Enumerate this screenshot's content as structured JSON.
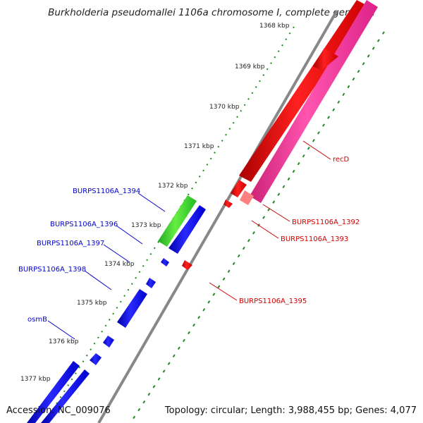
{
  "title": "Burkholderia pseudomallei 1106a chromosome I, complete genom...",
  "footer": {
    "accession": "Accession: NC_009076",
    "summary": "Topology: circular; Length: 3,988,455 bp; Genes: 4,077"
  },
  "scale_ticks": [
    "1368 kbp",
    "1369 kbp",
    "1370 kbp",
    "1371 kbp",
    "1372 kbp",
    "1373 kbp",
    "1374 kbp",
    "1375 kbp",
    "1376 kbp",
    "1377 kbp"
  ],
  "gene_labels": {
    "forward": [
      "BURPS1106A_1394",
      "BURPS1106A_1396",
      "BURPS1106A_1397",
      "BURPS1106A_1398",
      "osmB"
    ],
    "reverse": [
      "recD",
      "BURPS1106A_1392",
      "BURPS1106A_1393",
      "BURPS1106A_1395"
    ]
  },
  "colors": {
    "forward_gene": "#0000ee",
    "forward_highlight": "#22bb22",
    "reverse_gene": "#ee0000",
    "reverse_pink": "#ff3399",
    "reverse_light": "#ff8080",
    "backbone": "#888888",
    "tick_marks": "#228822",
    "forward_label": "#0000cc",
    "reverse_label": "#cc0000"
  }
}
